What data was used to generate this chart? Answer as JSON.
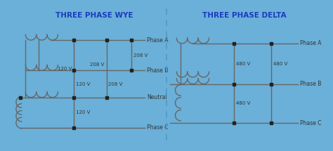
{
  "bg_outer": "#6ab0d8",
  "bg_inner": "#f5faff",
  "title_color": "#1a3bbf",
  "line_color": "#666666",
  "dot_color": "#222222",
  "text_color": "#333333",
  "dashed_line_color": "#5599cc",
  "title_wye": "THREE PHASE WYE",
  "title_delta": "THREE PHASE DELTA",
  "label_phaseA": "Phase A",
  "label_phaseB": "Phase B",
  "label_phaseC": "Phase C",
  "label_neutral": "Neutral",
  "wye_voltages": [
    "120 V",
    "208 V",
    "208 V",
    "120 V",
    "208 V",
    "120 V"
  ],
  "delta_voltages": [
    "480 V",
    "480 V",
    "480 V"
  ]
}
